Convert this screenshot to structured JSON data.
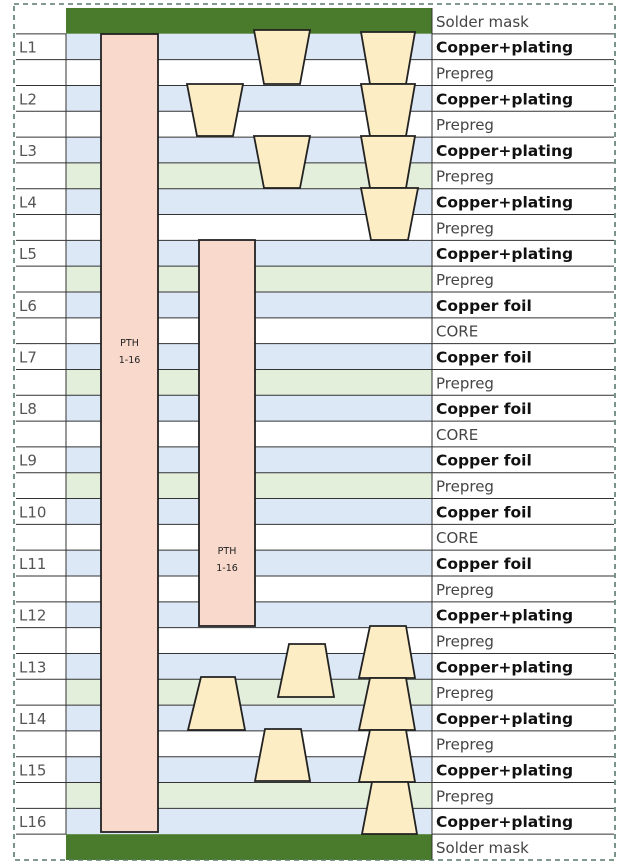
{
  "colors": {
    "solder_mask": "#4a7a2c",
    "copper_layer_fill": "#dce8f6",
    "prepreg_fill": "#e3eedb",
    "core_fill": "#ffffff",
    "pth_fill": "#f8d9cc",
    "microvia_fill": "#fdedc4",
    "grid_line": "#333333",
    "dashed_border": "#5a7a6a"
  },
  "rows": [
    {
      "kind": "mask",
      "material": "Solder mask",
      "layer": ""
    },
    {
      "kind": "copper",
      "material": "Copper+plating",
      "layer": "L1"
    },
    {
      "kind": "dielectric-white",
      "material": "Prepreg",
      "layer": ""
    },
    {
      "kind": "copper",
      "material": "Copper+plating",
      "layer": "L2"
    },
    {
      "kind": "dielectric-white",
      "material": "Prepreg",
      "layer": ""
    },
    {
      "kind": "copper",
      "material": "Copper+plating",
      "layer": "L3"
    },
    {
      "kind": "dielectric-green",
      "material": "Prepreg",
      "layer": ""
    },
    {
      "kind": "copper",
      "material": "Copper+plating",
      "layer": "L4"
    },
    {
      "kind": "dielectric-white",
      "material": "Prepreg",
      "layer": ""
    },
    {
      "kind": "copper",
      "material": "Copper+plating",
      "layer": "L5"
    },
    {
      "kind": "dielectric-green",
      "material": "Prepreg",
      "layer": ""
    },
    {
      "kind": "copper",
      "material": "Copper foil",
      "layer": "L6"
    },
    {
      "kind": "dielectric-white",
      "material": "CORE",
      "layer": ""
    },
    {
      "kind": "copper",
      "material": "Copper foil",
      "layer": "L7"
    },
    {
      "kind": "dielectric-green",
      "material": "Prepreg",
      "layer": ""
    },
    {
      "kind": "copper",
      "material": "Copper foil",
      "layer": "L8"
    },
    {
      "kind": "dielectric-white",
      "material": "CORE",
      "layer": ""
    },
    {
      "kind": "copper",
      "material": "Copper foil",
      "layer": "L9"
    },
    {
      "kind": "dielectric-green",
      "material": "Prepreg",
      "layer": ""
    },
    {
      "kind": "copper",
      "material": "Copper foil",
      "layer": "L10"
    },
    {
      "kind": "dielectric-white",
      "material": "CORE",
      "layer": ""
    },
    {
      "kind": "copper",
      "material": "Copper foil",
      "layer": "L11"
    },
    {
      "kind": "dielectric-white",
      "material": "Prepreg",
      "layer": ""
    },
    {
      "kind": "copper",
      "material": "Copper+plating",
      "layer": "L12"
    },
    {
      "kind": "dielectric-white",
      "material": "Prepreg",
      "layer": ""
    },
    {
      "kind": "copper",
      "material": "Copper+plating",
      "layer": "L13"
    },
    {
      "kind": "dielectric-green",
      "material": "Prepreg",
      "layer": ""
    },
    {
      "kind": "copper",
      "material": "Copper+plating",
      "layer": "L14"
    },
    {
      "kind": "dielectric-white",
      "material": "Prepreg",
      "layer": ""
    },
    {
      "kind": "copper",
      "material": "Copper+plating",
      "layer": "L15"
    },
    {
      "kind": "dielectric-green",
      "material": "Prepreg",
      "layer": ""
    },
    {
      "kind": "copper",
      "material": "Copper+plating",
      "layer": "L16"
    },
    {
      "kind": "mask",
      "material": "Solder mask",
      "layer": ""
    }
  ],
  "pth_vias": [
    {
      "label_line1": "PTH",
      "label_line2": "1-16"
    },
    {
      "label_line1": "PTH",
      "label_line2": "1-16"
    }
  ]
}
